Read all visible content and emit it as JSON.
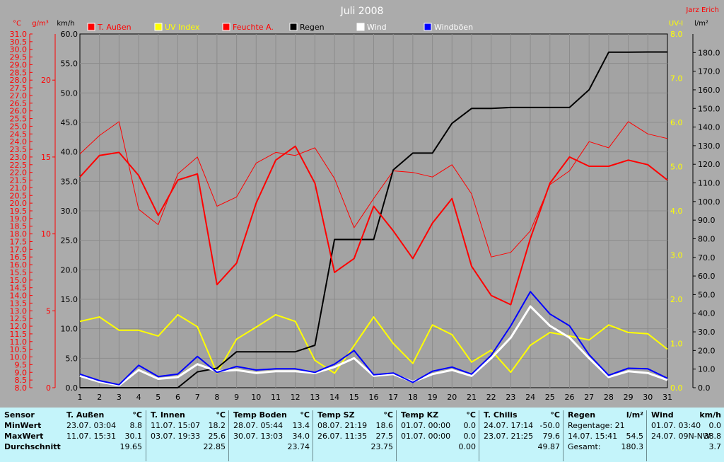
{
  "chart_data": {
    "type": "line",
    "title": "Juli 2008",
    "author": "Jarz Erich",
    "x": [
      1,
      2,
      3,
      4,
      5,
      6,
      7,
      8,
      9,
      10,
      11,
      12,
      13,
      14,
      15,
      16,
      17,
      18,
      19,
      20,
      21,
      22,
      23,
      24,
      25,
      26,
      27,
      28,
      29,
      30,
      31
    ],
    "xlim": [
      1,
      31
    ],
    "axes": {
      "temp": {
        "unit": "°C",
        "ylim": [
          8,
          31
        ],
        "ticks": [
          "8.0",
          "8.5",
          "9.0",
          "9.5",
          "10.0",
          "10.5",
          "11.0",
          "11.5",
          "12.0",
          "12.5",
          "13.0",
          "13.5",
          "14.0",
          "14.5",
          "15.0",
          "15.5",
          "16.0",
          "16.5",
          "17.0",
          "17.5",
          "18.0",
          "18.5",
          "19.0",
          "19.5",
          "20.0",
          "20.5",
          "21.0",
          "21.5",
          "22.0",
          "22.5",
          "23.0",
          "23.5",
          "24.0",
          "24.5",
          "25.0",
          "25.5",
          "26.0",
          "26.5",
          "27.0",
          "27.5",
          "28.0",
          "28.5",
          "29.0",
          "29.5",
          "30.0",
          "30.5",
          "31.0"
        ]
      },
      "hum": {
        "unit": "g/m³",
        "ylim": [
          0,
          23
        ],
        "ticks": [
          "0",
          "5",
          "10",
          "15",
          "20"
        ]
      },
      "wind": {
        "unit": "km/h",
        "ylim": [
          0,
          60
        ],
        "ticks": [
          "0.0",
          "5.0",
          "10.0",
          "15.0",
          "20.0",
          "25.0",
          "30.0",
          "35.0",
          "40.0",
          "45.0",
          "50.0",
          "55.0",
          "60.0"
        ]
      },
      "uv": {
        "unit": "UV-I",
        "ylim": [
          0,
          8
        ],
        "ticks": [
          "0.0",
          "1.0",
          "2.0",
          "3.0",
          "4.0",
          "5.0",
          "6.0",
          "7.0",
          "8.0"
        ]
      },
      "rain": {
        "unit": "l/m²",
        "ylim": [
          0,
          190
        ],
        "ticks": [
          "0.0",
          "10.0",
          "20.0",
          "30.0",
          "40.0",
          "50.0",
          "60.0",
          "70.0",
          "80.0",
          "90.0",
          "100.0",
          "110.0",
          "120.0",
          "130.0",
          "140.0",
          "150.0",
          "160.0",
          "170.0",
          "180.0"
        ]
      }
    },
    "legend_position": "top",
    "grid": true,
    "series": [
      {
        "name": "T. Außen",
        "color": "#ff0000",
        "axis": "temp",
        "width": 2,
        "values": [
          21.7,
          23.1,
          23.3,
          21.8,
          19.2,
          21.5,
          21.9,
          14.7,
          16.1,
          20.0,
          22.8,
          23.7,
          21.3,
          15.5,
          16.4,
          19.8,
          18.2,
          16.4,
          18.7,
          20.3,
          15.9,
          14.0,
          13.4,
          17.7,
          21.3,
          23.0,
          22.4,
          22.4,
          22.8,
          22.5,
          21.5
        ]
      },
      {
        "name": "Feuchte A.",
        "color": "#ff0000",
        "axis": "temp",
        "width": 1,
        "values": [
          23.2,
          24.4,
          25.3,
          19.6,
          18.6,
          21.9,
          23.0,
          19.8,
          20.4,
          22.6,
          23.3,
          23.1,
          23.6,
          21.6,
          18.4,
          20.3,
          22.1,
          22.0,
          21.7,
          22.5,
          20.6,
          16.5,
          16.8,
          18.2,
          21.2,
          22.1,
          24.0,
          23.6,
          25.3,
          24.5,
          24.2
        ]
      },
      {
        "name": "UV Index",
        "color": "#ffff00",
        "axis": "uv",
        "width": 2,
        "values": [
          1.5,
          1.6,
          1.3,
          1.3,
          1.17,
          1.65,
          1.38,
          0.33,
          1.1,
          1.37,
          1.65,
          1.5,
          0.62,
          0.33,
          0.95,
          1.6,
          1.0,
          0.55,
          1.42,
          1.2,
          0.58,
          0.85,
          0.35,
          0.96,
          1.25,
          1.17,
          1.08,
          1.42,
          1.25,
          1.22,
          0.87
        ]
      },
      {
        "name": "Regen",
        "color": "#000000",
        "axis": "rain",
        "width": 2,
        "values": [
          0,
          0,
          0,
          0,
          0,
          0,
          8.5,
          10.5,
          19.3,
          19.3,
          19.3,
          19.3,
          22.8,
          79.6,
          79.6,
          79.6,
          117,
          126,
          126,
          142,
          150,
          150,
          150.5,
          150.5,
          150.5,
          150.5,
          160,
          180.2,
          180.2,
          180.3,
          180.3
        ]
      },
      {
        "name": "Wind",
        "color": "#ffffff",
        "axis": "wind",
        "width": 3,
        "values": [
          2.0,
          1.0,
          0.4,
          3.0,
          1.5,
          1.8,
          4.0,
          2.8,
          3.0,
          2.5,
          2.8,
          2.8,
          2.5,
          3.5,
          5.0,
          2.0,
          2.3,
          1.0,
          2.3,
          3.0,
          2.0,
          5.0,
          8.5,
          13.8,
          10.5,
          8.5,
          5.0,
          1.8,
          2.8,
          2.5,
          1.3
        ]
      },
      {
        "name": "Windböen",
        "color": "#0000ff",
        "axis": "wind",
        "width": 2,
        "values": [
          2.3,
          1.2,
          0.5,
          3.8,
          1.9,
          2.3,
          5.3,
          2.6,
          3.6,
          3.0,
          3.2,
          3.2,
          2.6,
          4.0,
          6.3,
          2.2,
          2.5,
          0.9,
          2.8,
          3.5,
          2.3,
          5.5,
          10.5,
          16.3,
          12.5,
          10.5,
          5.6,
          2.1,
          3.3,
          3.2,
          1.6
        ]
      }
    ]
  },
  "stats": {
    "headers": {
      "sensor": "Sensor",
      "rows": [
        "MinWert",
        "MaxWert",
        "Durchschnitt"
      ]
    },
    "columns": [
      {
        "title": "T. Außen",
        "unit": "°C",
        "min_time": "23.07.  03:04",
        "min": "8.8",
        "max_time": "11.07.  15:31",
        "max": "30.1",
        "avg": "19.65"
      },
      {
        "title": "T. Innen",
        "unit": "°C",
        "min_time": "11.07.  15:07",
        "min": "18.2",
        "max_time": "03.07.  19:33",
        "max": "25.6",
        "avg": "22.85"
      },
      {
        "title": "Temp Boden",
        "unit": "°C",
        "min_time": "28.07.  05:44",
        "min": "13.4",
        "max_time": "30.07.  13:03",
        "max": "34.0",
        "avg": "23.74"
      },
      {
        "title": "Temp SZ",
        "unit": "°C",
        "min_time": "08.07.  21:19",
        "min": "18.6",
        "max_time": "26.07.  11:35",
        "max": "27.5",
        "avg": "23.75"
      },
      {
        "title": "Temp KZ",
        "unit": "°C",
        "min_time": "01.07.  00:00",
        "min": "0.0",
        "max_time": "01.07.  00:00",
        "max": "0.0",
        "avg": "0.00"
      },
      {
        "title": "T. Chilis",
        "unit": "°C",
        "min_time": "24.07.  17:14",
        "min": "-50.0",
        "max_time": "23.07.  21:25",
        "max": "79.6",
        "avg": "49.87"
      },
      {
        "title": "Regen",
        "unit": "l/m²",
        "min_time": "Regentage: 21",
        "min": "",
        "max_time": "14.07.  15:41",
        "max": "54.5",
        "avg_label": "Gesamt:",
        "avg": "180.3"
      },
      {
        "title": "Wind",
        "unit": "km/h",
        "min_time": "01.07.  03:40",
        "min": "0.0",
        "max_time": "24.07.  09N-NW",
        "max": "38.8",
        "avg": "3.7"
      }
    ]
  }
}
